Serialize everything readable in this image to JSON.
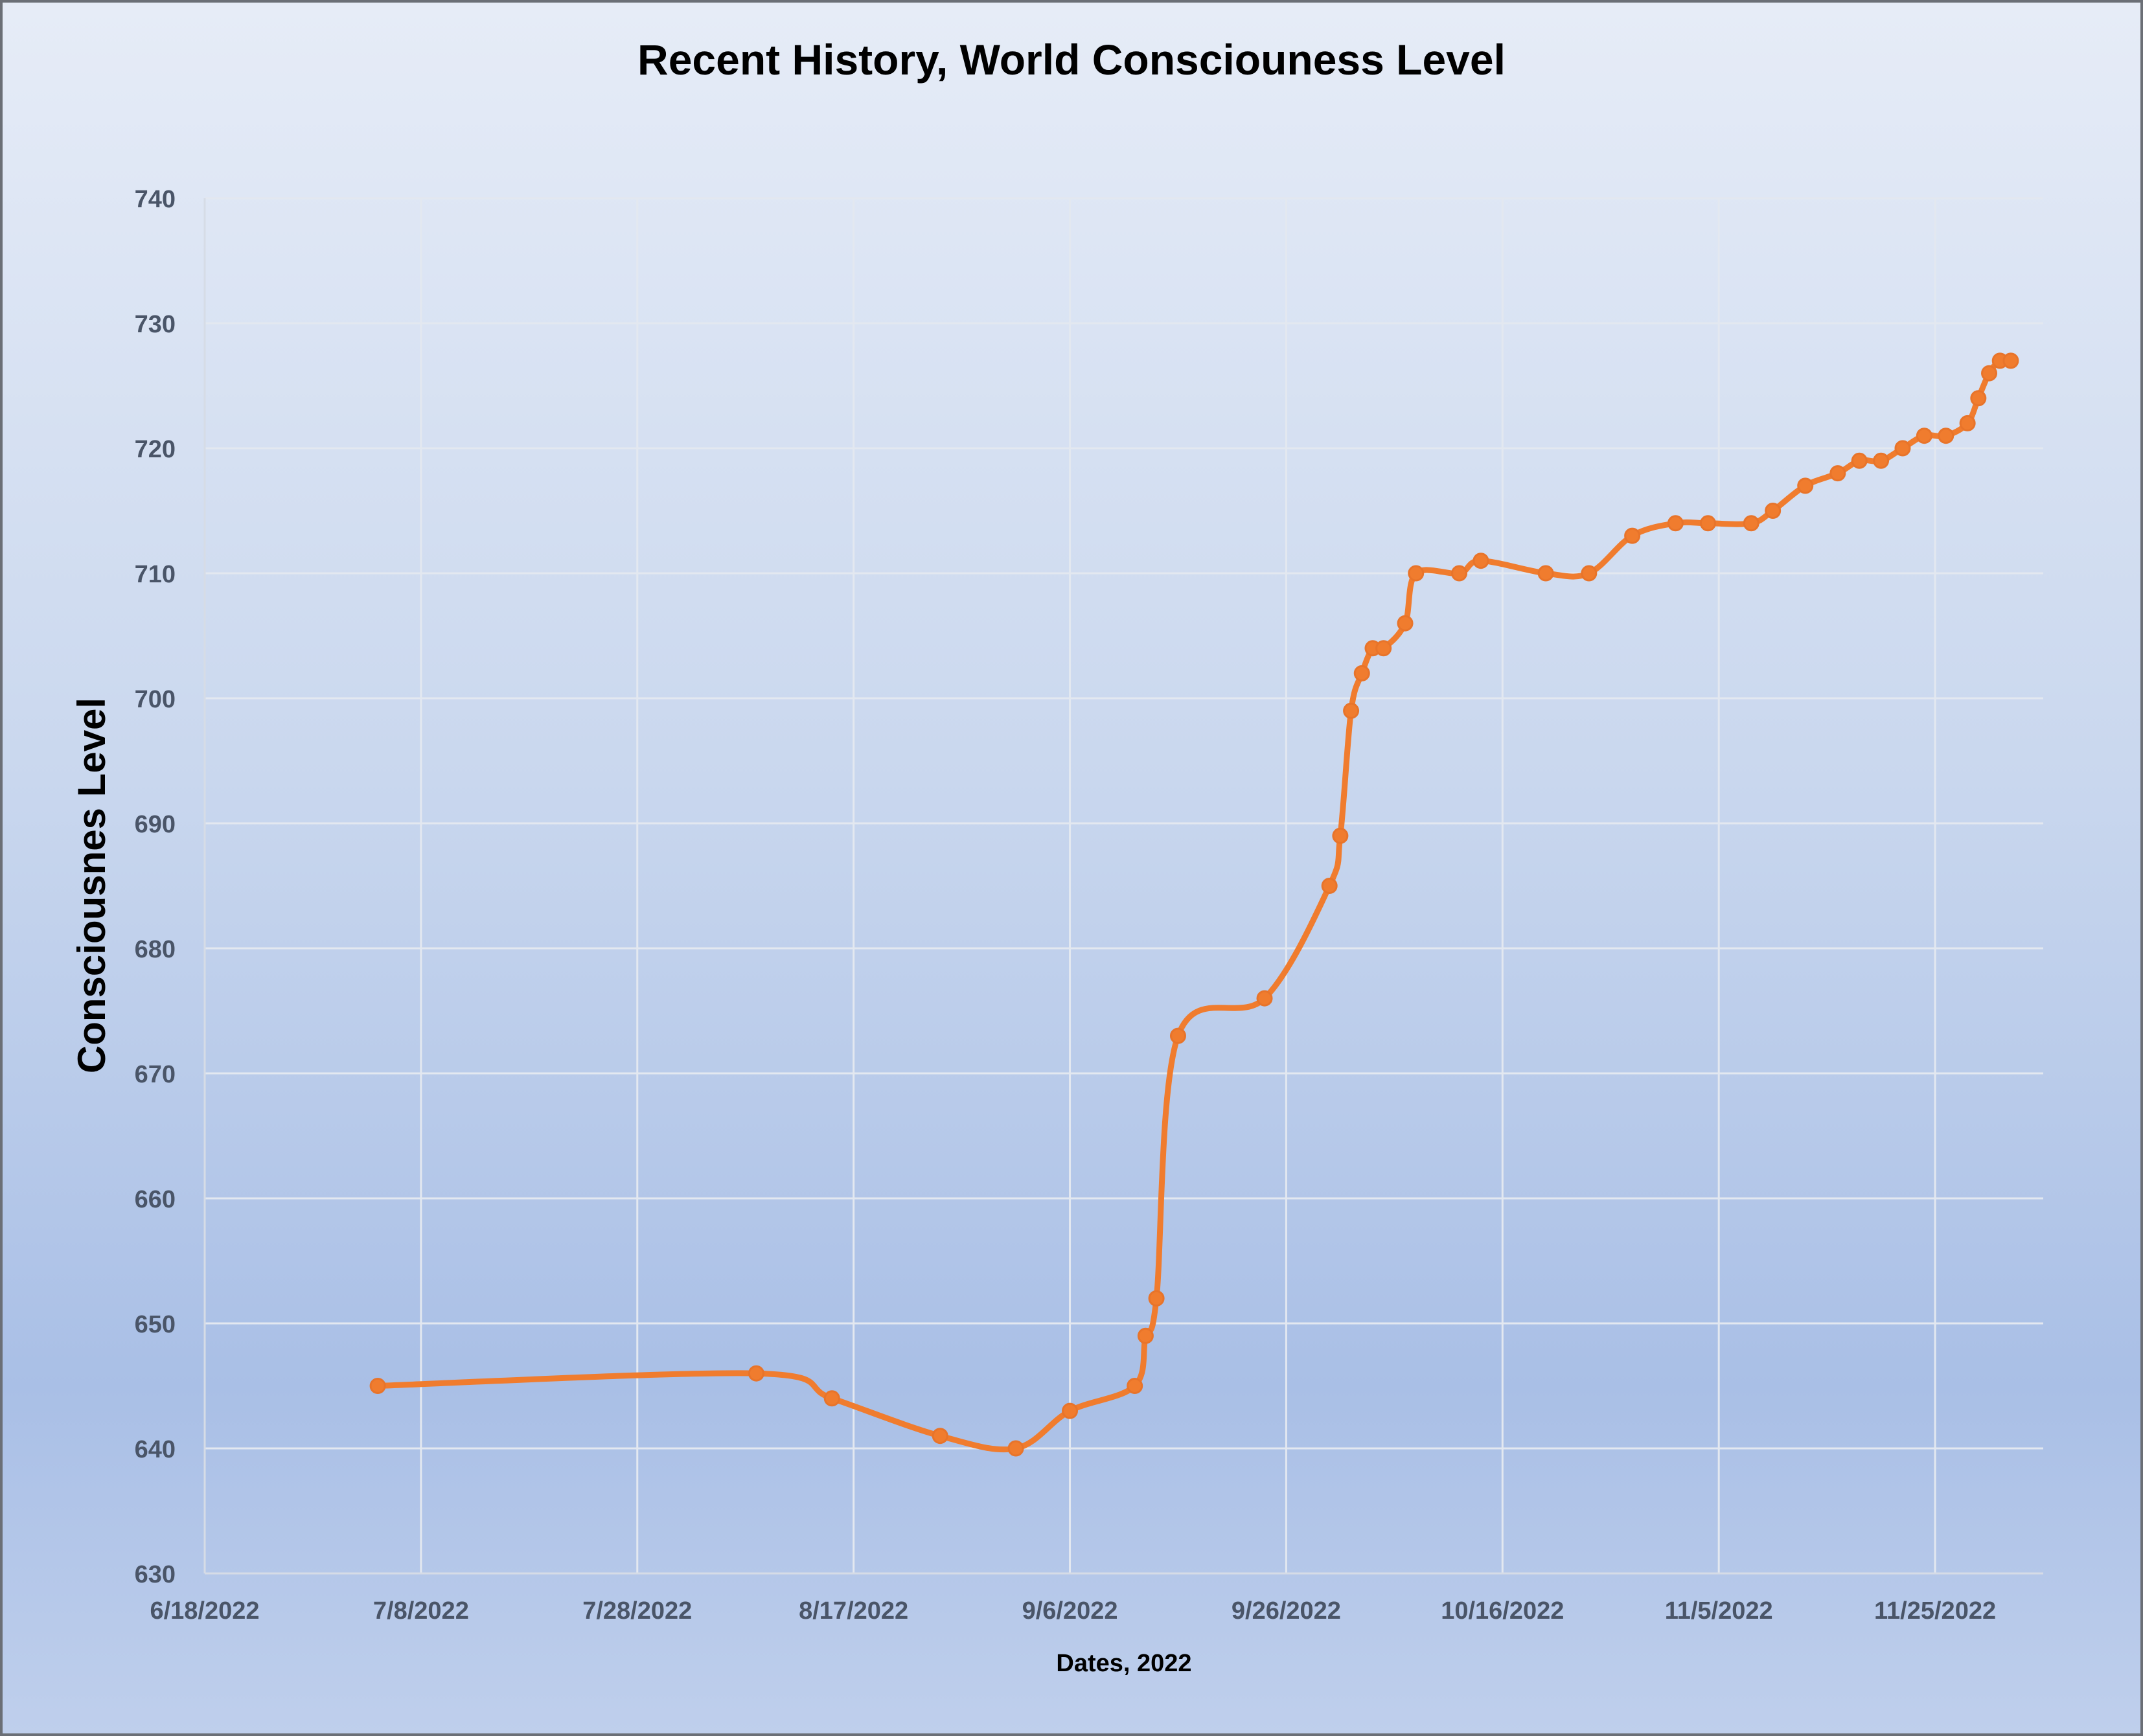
{
  "chart_data": {
    "type": "line",
    "title": "Recent History, World Consciouness Level",
    "xlabel": "Dates, 2022",
    "ylabel": "Consciousnes Level",
    "xlim": [
      "2022-06-18",
      "2022-12-05"
    ],
    "ylim": [
      630,
      740
    ],
    "x_ticks": [
      "6/18/2022",
      "7/8/2022",
      "7/28/2022",
      "8/17/2022",
      "9/6/2022",
      "9/26/2022",
      "10/16/2022",
      "11/5/2022",
      "11/25/2022"
    ],
    "y_ticks": [
      630,
      640,
      650,
      660,
      670,
      680,
      690,
      700,
      710,
      720,
      730,
      740
    ],
    "grid": true,
    "smooth": true,
    "colors": {
      "line": "#f07c2e",
      "grid": "#e3e8f0",
      "axis_text": "#4a5568"
    },
    "series": [
      {
        "name": "Consciousness Level",
        "x": [
          "2022-07-04",
          "2022-08-08",
          "2022-08-15",
          "2022-08-25",
          "2022-09-01",
          "2022-09-06",
          "2022-09-12",
          "2022-09-13",
          "2022-09-14",
          "2022-09-16",
          "2022-09-24",
          "2022-09-30",
          "2022-10-01",
          "2022-10-02",
          "2022-10-03",
          "2022-10-04",
          "2022-10-05",
          "2022-10-07",
          "2022-10-08",
          "2022-10-12",
          "2022-10-14",
          "2022-10-20",
          "2022-10-24",
          "2022-10-28",
          "2022-11-01",
          "2022-11-04",
          "2022-11-08",
          "2022-11-10",
          "2022-11-13",
          "2022-11-16",
          "2022-11-18",
          "2022-11-20",
          "2022-11-22",
          "2022-11-24",
          "2022-11-26",
          "2022-11-28",
          "2022-11-29",
          "2022-11-30",
          "2022-12-01",
          "2022-12-02"
        ],
        "y": [
          645,
          646,
          644,
          641,
          640,
          643,
          645,
          649,
          652,
          673,
          676,
          685,
          689,
          699,
          702,
          704,
          704,
          706,
          710,
          710,
          711,
          710,
          710,
          713,
          714,
          714,
          714,
          715,
          717,
          718,
          719,
          719,
          720,
          721,
          721,
          722,
          724,
          726,
          727,
          727
        ]
      }
    ]
  }
}
